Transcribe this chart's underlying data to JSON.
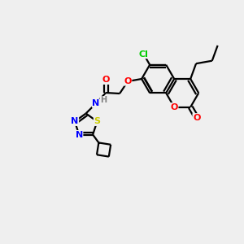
{
  "bg_color": "#efefef",
  "bond_color": "#000000",
  "atom_colors": {
    "O": "#ff0000",
    "N": "#0000ff",
    "S": "#cccc00",
    "Cl": "#00cc00",
    "C": "#000000",
    "H": "#808080"
  },
  "figsize": [
    3.0,
    3.0
  ],
  "dpi": 100
}
